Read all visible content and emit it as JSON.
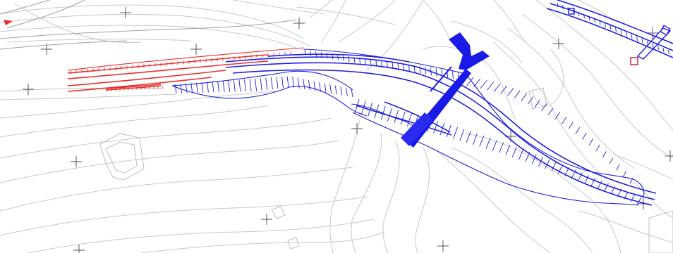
{
  "drawing": {
    "colors": {
      "background": "#ffffff",
      "terrain_contour": "#c8c8c8",
      "grid_cross": "#555555",
      "new_alignment": "#1f1fe0",
      "existing_alignment": "#e53030",
      "bridge_fill": "#1a1ae6",
      "marker": "#d0103a"
    },
    "layers": [
      "terrain-contours",
      "buildings",
      "grid-crosses",
      "existing-alignment",
      "new-alignment",
      "embankment-slopes",
      "bridge-deck"
    ]
  }
}
